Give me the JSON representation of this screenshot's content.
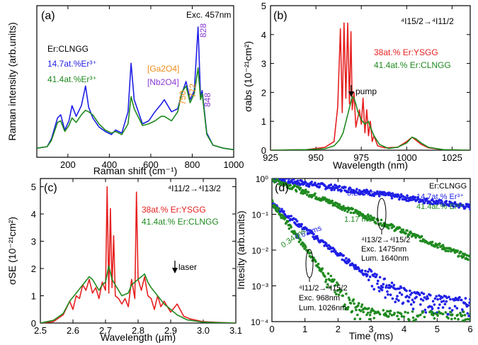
{
  "colors": {
    "blue": "#1f1fe6",
    "green": "#1f8a1f",
    "red": "#e62020",
    "orange": "#f08c1a",
    "purple": "#8c3cd2",
    "black": "#000000"
  },
  "chart_data": [
    {
      "type": "line",
      "panel": "(a)",
      "xlabel": "Raman shift (cm⁻¹)",
      "ylabel": "Raman intensity (arb.units)",
      "xlim": [
        50,
        1000
      ],
      "ylim": [
        0,
        1.0
      ],
      "xticks": [
        200,
        400,
        600,
        800,
        1000
      ],
      "yticks": [],
      "annotations": {
        "exc": "Exc. 457nm",
        "sample": "Er:CLNGG",
        "ga": "[Ga2O4]",
        "nb": "[Nb2O4]",
        "peaks": [
          "750",
          "772",
          "828",
          "848"
        ]
      },
      "series": [
        {
          "name": "14.7at.%Er³⁺",
          "color": "blue",
          "x": [
            50,
            100,
            120,
            150,
            165,
            185,
            205,
            220,
            240,
            265,
            285,
            300,
            320,
            350,
            380,
            410,
            430,
            460,
            490,
            505,
            520,
            560,
            590,
            620,
            650,
            665,
            700,
            730,
            750,
            770,
            790,
            810,
            828,
            840,
            848,
            870,
            900,
            950,
            1000
          ],
          "y": [
            0.06,
            0.07,
            0.12,
            0.26,
            0.28,
            0.18,
            0.24,
            0.34,
            0.27,
            0.34,
            0.47,
            0.33,
            0.26,
            0.2,
            0.17,
            0.15,
            0.18,
            0.16,
            0.3,
            0.62,
            0.38,
            0.22,
            0.24,
            0.3,
            0.35,
            0.38,
            0.3,
            0.32,
            0.42,
            0.5,
            0.38,
            0.44,
            0.86,
            0.4,
            0.44,
            0.16,
            0.08,
            0.06,
            0.05
          ]
        },
        {
          "name": "41.4at.%Er³⁺",
          "color": "green",
          "x": [
            50,
            100,
            120,
            150,
            165,
            185,
            205,
            220,
            240,
            265,
            285,
            300,
            320,
            350,
            380,
            410,
            430,
            460,
            490,
            505,
            520,
            560,
            590,
            620,
            650,
            665,
            700,
            730,
            750,
            770,
            790,
            810,
            828,
            840,
            848,
            870,
            900,
            950,
            1000
          ],
          "y": [
            0.06,
            0.07,
            0.11,
            0.23,
            0.24,
            0.17,
            0.21,
            0.26,
            0.23,
            0.28,
            0.31,
            0.3,
            0.28,
            0.22,
            0.18,
            0.16,
            0.17,
            0.15,
            0.22,
            0.4,
            0.32,
            0.21,
            0.22,
            0.24,
            0.27,
            0.27,
            0.24,
            0.3,
            0.43,
            0.47,
            0.36,
            0.42,
            0.59,
            0.38,
            0.42,
            0.15,
            0.08,
            0.06,
            0.05
          ]
        }
      ]
    },
    {
      "type": "line",
      "panel": "(b)",
      "xlabel": "Wavelength (nm)",
      "ylabel": "σabs (10⁻²¹cm²)",
      "xlim": [
        925,
        1035
      ],
      "ylim": [
        0,
        5
      ],
      "xticks": [
        925,
        950,
        975,
        1000,
        1025
      ],
      "yticks": [
        0,
        1,
        2,
        3,
        4,
        5
      ],
      "annotations": {
        "transition": "⁴I15/2→⁴I11/2",
        "pump": "pump"
      },
      "series": [
        {
          "name": "38at.% Er:YSGG",
          "color": "red",
          "x": [
            925,
            945,
            955,
            960,
            962,
            963.5,
            964.5,
            965.5,
            966.5,
            967.5,
            968.5,
            969.3,
            970,
            971,
            972,
            974,
            975,
            976,
            977,
            978,
            979,
            980,
            981,
            982,
            984,
            988,
            995,
            1000,
            1003,
            1005,
            1008,
            1012,
            1020,
            1035
          ],
          "y": [
            0.0,
            0.02,
            0.1,
            0.3,
            1.5,
            4.2,
            1.3,
            4.4,
            1.8,
            4.4,
            1.6,
            4.1,
            1.4,
            2.0,
            0.8,
            1.4,
            0.9,
            1.8,
            0.6,
            1.4,
            0.5,
            1.0,
            0.3,
            0.5,
            0.15,
            0.08,
            0.1,
            0.3,
            0.45,
            0.35,
            0.2,
            0.08,
            0.02,
            0.0
          ]
        },
        {
          "name": "41.4at.% Er:CLNGG",
          "color": "green",
          "x": [
            925,
            945,
            955,
            960,
            963,
            965,
            967,
            969,
            970,
            971,
            972,
            973,
            975,
            977,
            979,
            980,
            982,
            985,
            990,
            995,
            1000,
            1003,
            1005,
            1008,
            1012,
            1020,
            1035
          ],
          "y": [
            0.0,
            0.02,
            0.05,
            0.15,
            0.35,
            0.6,
            1.1,
            1.6,
            1.85,
            1.8,
            1.6,
            1.35,
            1.05,
            0.9,
            1.0,
            0.8,
            0.5,
            0.2,
            0.06,
            0.1,
            0.25,
            0.45,
            0.4,
            0.25,
            0.1,
            0.02,
            0.0
          ]
        }
      ]
    },
    {
      "type": "line",
      "panel": "(c)",
      "xlabel": "Wavelength (μm)",
      "ylabel": "σSE (10⁻²¹cm²)",
      "xlim": [
        2.5,
        3.1
      ],
      "ylim": [
        0,
        5.3
      ],
      "xticks": [
        2.5,
        2.6,
        2.7,
        2.8,
        2.9,
        3.0,
        3.1
      ],
      "yticks": [
        0,
        1,
        2,
        3,
        4,
        5
      ],
      "annotations": {
        "transition": "⁴I11/2→⁴I13/2",
        "laser": "laser"
      },
      "series": [
        {
          "name": "38at.% Er:YSGG",
          "color": "red",
          "x": [
            2.5,
            2.54,
            2.57,
            2.59,
            2.6,
            2.61,
            2.62,
            2.63,
            2.64,
            2.65,
            2.66,
            2.67,
            2.68,
            2.69,
            2.7,
            2.705,
            2.71,
            2.715,
            2.72,
            2.725,
            2.73,
            2.74,
            2.75,
            2.76,
            2.77,
            2.78,
            2.79,
            2.795,
            2.8,
            2.81,
            2.82,
            2.83,
            2.84,
            2.85,
            2.86,
            2.87,
            2.88,
            2.9,
            2.92,
            2.94,
            2.96,
            3.0,
            3.05,
            3.1
          ],
          "y": [
            0.0,
            0.05,
            0.3,
            0.8,
            0.5,
            1.0,
            0.9,
            1.4,
            1.2,
            1.6,
            1.1,
            1.3,
            0.9,
            1.5,
            1.2,
            5.0,
            1.1,
            4.2,
            1.3,
            3.2,
            1.0,
            0.9,
            0.7,
            0.9,
            0.6,
            1.6,
            0.9,
            4.8,
            1.6,
            1.2,
            1.7,
            1.0,
            0.9,
            0.5,
            1.0,
            0.6,
            0.8,
            0.4,
            0.7,
            0.25,
            0.15,
            0.05,
            0.02,
            0.0
          ]
        },
        {
          "name": "41.4at.% Er:CLNGG",
          "color": "green",
          "x": [
            2.5,
            2.54,
            2.57,
            2.59,
            2.61,
            2.63,
            2.65,
            2.66,
            2.67,
            2.68,
            2.69,
            2.7,
            2.71,
            2.72,
            2.73,
            2.75,
            2.77,
            2.78,
            2.79,
            2.8,
            2.81,
            2.82,
            2.83,
            2.84,
            2.86,
            2.88,
            2.9,
            2.92,
            2.95,
            3.0,
            3.1
          ],
          "y": [
            0.0,
            0.1,
            0.35,
            0.8,
            1.1,
            1.4,
            1.7,
            1.6,
            1.4,
            1.2,
            1.4,
            1.5,
            2.1,
            1.6,
            1.4,
            1.0,
            1.1,
            1.4,
            1.5,
            1.6,
            1.7,
            1.8,
            1.5,
            1.3,
            1.0,
            0.7,
            0.5,
            0.3,
            0.12,
            0.03,
            0.0
          ]
        }
      ]
    },
    {
      "type": "scatter",
      "panel": "(d)",
      "xlabel": "Time (ms)",
      "ylabel": "Intesity (arb.units)",
      "xlim": [
        0,
        6
      ],
      "ylim": [
        0.0001,
        1
      ],
      "yscale": "log",
      "xticks": [
        0,
        1,
        2,
        3,
        4,
        5,
        6
      ],
      "yticks": [
        "10⁰",
        "10⁻¹",
        "10⁻²",
        "10⁻³",
        "10⁻⁴"
      ],
      "annotations": {
        "sample": "Er:CLNGG",
        "tau1": "3.29 ms",
        "tau2": "1.17 ms",
        "tau3": "0.61 ms",
        "tau4": "0.34 ms",
        "trans1": "⁴I13/2→⁴I15/2",
        "exc1": "Exc. 1475nm",
        "lum1": "Lum. 1640nm",
        "trans2": "⁴I11/2→⁴I15/2",
        "exc2": "Exc. 968nm",
        "lum2": "Lum. 1026nm"
      },
      "series": [
        {
          "name": "14.7at.% Er³⁺",
          "color": "blue",
          "tau_ms": 3.29,
          "y0": 1.0
        },
        {
          "name": "41.4at.% Er³⁺",
          "color": "green",
          "tau_ms": 1.17,
          "y0": 1.0
        },
        {
          "color": "blue",
          "tau_ms": 0.61,
          "y0": 0.2
        },
        {
          "color": "green",
          "tau_ms": 0.34,
          "y0": 0.22
        }
      ]
    }
  ]
}
